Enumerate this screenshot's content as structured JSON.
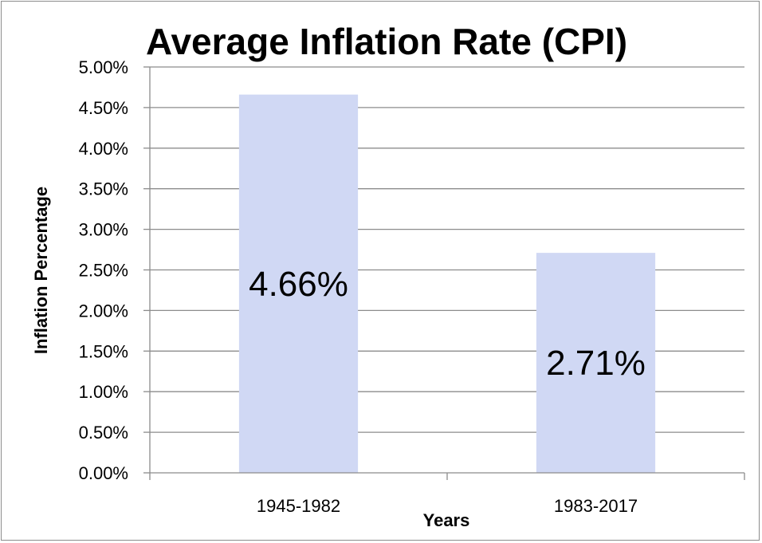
{
  "chart_data": {
    "type": "bar",
    "title": "Average Inflation Rate (CPI)",
    "xlabel": "Years",
    "ylabel": "Inflation Percentage",
    "categories": [
      "1945-1982",
      "1983-2017"
    ],
    "values": [
      4.66,
      2.71
    ],
    "data_labels": [
      "4.66%",
      "2.71%"
    ],
    "ylim": [
      0,
      5
    ],
    "ytick_step": 0.5,
    "ytick_labels": [
      "0.00%",
      "0.50%",
      "1.00%",
      "1.50%",
      "2.00%",
      "2.50%",
      "3.00%",
      "3.50%",
      "4.00%",
      "4.50%",
      "5.00%"
    ],
    "grid": true,
    "legend": "none",
    "colors": {
      "bar": "#d0d8f4",
      "grid": "#8c8c8c",
      "axis": "#8c8c8c"
    }
  }
}
